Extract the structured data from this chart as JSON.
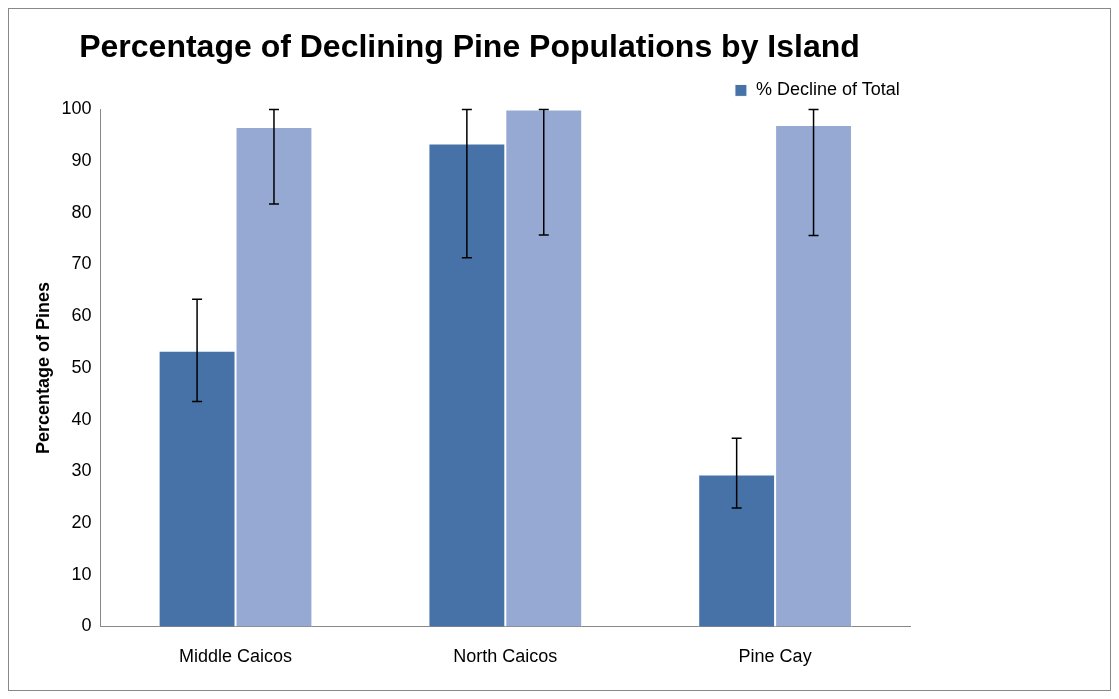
{
  "chart_data": {
    "type": "bar",
    "title": "Percentage of Declining Pine Populations by Island",
    "ylabel": "Percentage of Pines",
    "categories": [
      "Middle Caicos",
      "North Caicos",
      "Pine Cay"
    ],
    "series": [
      {
        "name": "% Decline of Total",
        "color": "#4672a8",
        "values": [
          53.3,
          93.4,
          29.4
        ],
        "errors": [
          [
            43.5,
            63.3
          ],
          [
            71.3,
            100
          ],
          [
            22.9,
            36.4
          ]
        ]
      },
      {
        "color": "#95a9d3",
        "values": [
          96.6,
          100,
          97.0
        ],
        "errors": [
          [
            81.7,
            100
          ],
          [
            75.7,
            100
          ],
          [
            75.6,
            100
          ]
        ]
      }
    ],
    "ylim": [
      0,
      100
    ],
    "yticks": [
      0,
      10,
      20,
      30,
      40,
      50,
      60,
      70,
      80,
      90,
      100
    ],
    "grid": false,
    "legend": "top right"
  }
}
